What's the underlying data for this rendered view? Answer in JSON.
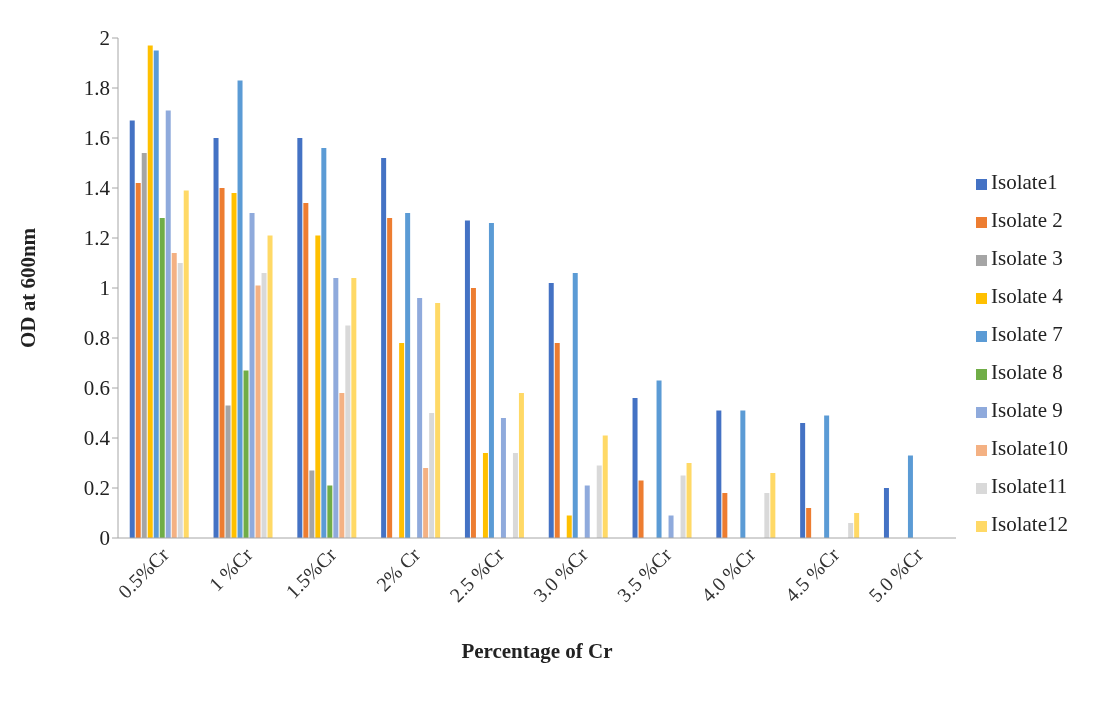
{
  "chart_data": {
    "type": "bar",
    "xlabel": "Percentage of Cr",
    "ylabel": "OD at 600nm",
    "categories": [
      "0.5%Cr",
      "1 %Cr",
      "1.5%Cr",
      "2% Cr",
      "2.5 %Cr",
      "3.0 %Cr",
      "3.5 %Cr",
      "4.0 %Cr",
      "4.5 %Cr",
      "5.0 %Cr"
    ],
    "ylim": [
      0,
      2
    ],
    "yticks": [
      0,
      0.2,
      0.4,
      0.6,
      0.8,
      1,
      1.2,
      1.4,
      1.6,
      1.8,
      2
    ],
    "grid": false,
    "legend": "right",
    "series": [
      {
        "name": "Isolate1",
        "color": "#4472c4",
        "values": [
          1.67,
          1.6,
          1.6,
          1.52,
          1.27,
          1.02,
          0.56,
          0.51,
          0.46,
          0.2
        ]
      },
      {
        "name": "Isolate 2",
        "color": "#ed7d31",
        "values": [
          1.42,
          1.4,
          1.34,
          1.28,
          1.0,
          0.78,
          0.23,
          0.18,
          0.12,
          0
        ]
      },
      {
        "name": "Isolate 3",
        "color": "#a5a5a5",
        "values": [
          1.54,
          0.53,
          0.27,
          0,
          0,
          0,
          0,
          0,
          0,
          0
        ]
      },
      {
        "name": "Isolate 4",
        "color": "#ffc000",
        "values": [
          1.97,
          1.38,
          1.21,
          0.78,
          0.34,
          0.09,
          0,
          0,
          0,
          0
        ]
      },
      {
        "name": "Isolate 7",
        "color": "#5b9bd5",
        "values": [
          1.95,
          1.83,
          1.56,
          1.3,
          1.26,
          1.06,
          0.63,
          0.51,
          0.49,
          0.33
        ]
      },
      {
        "name": "Isolate 8",
        "color": "#70ad47",
        "values": [
          1.28,
          0.67,
          0.21,
          0,
          0,
          0,
          0,
          0,
          0,
          0
        ]
      },
      {
        "name": "Isolate 9",
        "color": "#8faadc",
        "values": [
          1.71,
          1.3,
          1.04,
          0.96,
          0.48,
          0.21,
          0.09,
          0,
          0,
          0
        ]
      },
      {
        "name": "Isolate10",
        "color": "#f4b183",
        "values": [
          1.14,
          1.01,
          0.58,
          0.28,
          0,
          0,
          0,
          0,
          0,
          0
        ]
      },
      {
        "name": "Isolate11",
        "color": "#d9d9d9",
        "values": [
          1.1,
          1.06,
          0.85,
          0.5,
          0.34,
          0.29,
          0.25,
          0.18,
          0.06,
          0
        ]
      },
      {
        "name": "Isolate12",
        "color": "#ffd966",
        "values": [
          1.39,
          1.21,
          1.04,
          0.94,
          0.58,
          0.41,
          0.3,
          0.26,
          0.1,
          0
        ]
      }
    ]
  }
}
